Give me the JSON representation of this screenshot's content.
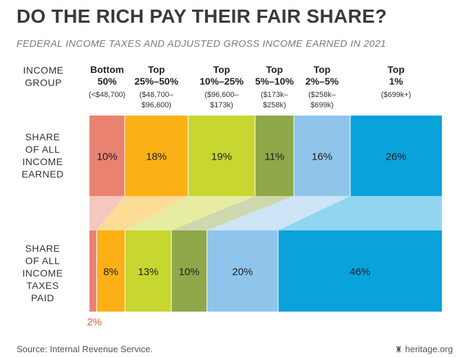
{
  "title": "DO THE RICH PAY THEIR FAIR SHARE?",
  "subtitle": "FEDERAL INCOME TAXES AND ADJUSTED GROSS INCOME EARNED IN 2021",
  "row_labels": {
    "income_group": [
      "INCOME",
      "GROUP"
    ],
    "earned": [
      "SHARE",
      "OF ALL",
      "INCOME",
      "EARNED"
    ],
    "taxes": [
      "SHARE",
      "OF ALL",
      "INCOME",
      "TAXES",
      "PAID"
    ]
  },
  "colors": {
    "bottom50": "#e98271",
    "top25_50": "#fbb116",
    "top10_25": "#c7d630",
    "top5_10": "#8fa84a",
    "top2_5": "#8fc5eb",
    "top1": "#0aa2db",
    "bottom50_label": "#e45c4d"
  },
  "chart_data": {
    "type": "bar",
    "title": "DO THE RICH PAY THEIR FAIR SHARE?",
    "subtitle": "FEDERAL INCOME TAXES AND ADJUSTED GROSS INCOME EARNED IN 2021",
    "stacked_horizontal": true,
    "categories": [
      {
        "name": [
          "Bottom",
          "50%"
        ],
        "range": [
          "(<$48,700)"
        ]
      },
      {
        "name": [
          "Top",
          "25%–50%"
        ],
        "range": [
          "($48,700–",
          "$96,600)"
        ]
      },
      {
        "name": [
          "Top",
          "10%–25%"
        ],
        "range": [
          "($96,600–",
          "$173k)"
        ]
      },
      {
        "name": [
          "Top",
          "5%–10%"
        ],
        "range": [
          "($173k–",
          "$258k)"
        ]
      },
      {
        "name": [
          "Top",
          "2%–5%"
        ],
        "range": [
          "($258k–",
          "$699k)"
        ]
      },
      {
        "name": [
          "Top",
          "1%"
        ],
        "range": [
          "($699k+)"
        ]
      }
    ],
    "series": [
      {
        "values": [
          10,
          18,
          19,
          11,
          16,
          26
        ],
        "labels": [
          "10%",
          "18%",
          "19%",
          "11%",
          "16%",
          "26%"
        ]
      },
      {
        "values": [
          2,
          8,
          13,
          10,
          20,
          46
        ],
        "labels": [
          "2%",
          "8%",
          "13%",
          "10%",
          "20%",
          "46%"
        ]
      }
    ]
  },
  "footer": {
    "source": "Source: Internal Revenue Service.",
    "brand": "heritage.org",
    "brand_icon": "heritage-bell-icon"
  }
}
